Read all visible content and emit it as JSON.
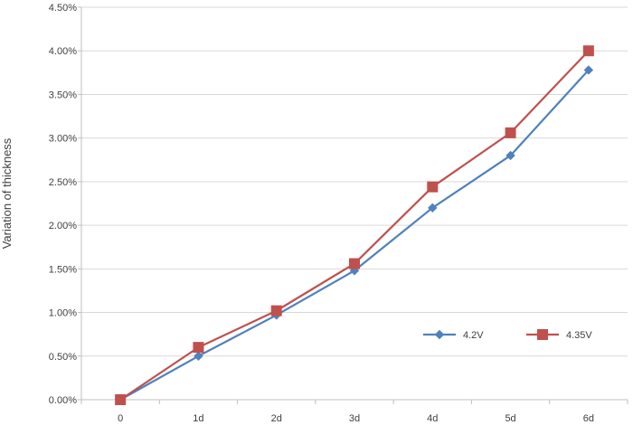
{
  "chart_data": {
    "type": "line",
    "title": "",
    "xlabel": "",
    "ylabel": "Variation of thickness",
    "categories": [
      "0",
      "1d",
      "2d",
      "3d",
      "4d",
      "5d",
      "6d"
    ],
    "ylim": [
      0,
      4.5
    ],
    "ytick_step": 0.5,
    "ytick_labels": [
      "0.00%",
      "0.50%",
      "1.00%",
      "1.50%",
      "2.00%",
      "2.50%",
      "3.00%",
      "3.50%",
      "4.00%",
      "4.50%"
    ],
    "grid": true,
    "legend": "bottom-right",
    "series": [
      {
        "name": "4.2V",
        "color": "#4f81bd",
        "marker": "diamond",
        "values": [
          0.0,
          0.5,
          0.97,
          1.48,
          2.2,
          2.8,
          3.78
        ]
      },
      {
        "name": "4.35V",
        "color": "#c0504d",
        "marker": "square",
        "values": [
          0.0,
          0.6,
          1.02,
          1.56,
          2.44,
          3.06,
          4.0
        ]
      }
    ]
  }
}
